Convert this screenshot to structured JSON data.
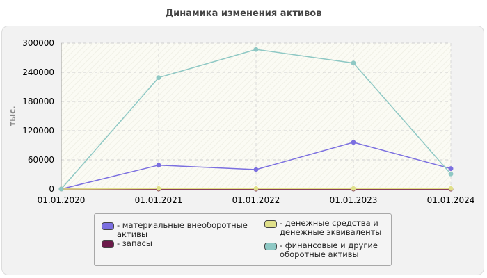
{
  "chart_data": {
    "type": "line",
    "title": "Динамика изменения активов",
    "ylabel": "тыс.",
    "xlabel": "",
    "categories": [
      "01.01.2020",
      "01.01.2021",
      "01.01.2022",
      "01.01.2023",
      "01.01.2024"
    ],
    "y_ticks": [
      "0",
      "60000",
      "120000",
      "180000",
      "240000",
      "300000"
    ],
    "ylim": [
      0,
      300000
    ],
    "grid": true,
    "legend_position": "bottom",
    "series": [
      {
        "name": "- материальные внеоборотные активы",
        "color": "#7b6fe0",
        "values": [
          0,
          49000,
          40000,
          96000,
          42000
        ]
      },
      {
        "name": "- запасы",
        "color": "#6b1a4a",
        "values": [
          0,
          0,
          0,
          0,
          0
        ]
      },
      {
        "name": "- денежные средства и денежные эквиваленты",
        "color": "#e0e08a",
        "values": [
          0,
          1000,
          1000,
          1000,
          1000
        ]
      },
      {
        "name": "- финансовые и другие оборотные активы",
        "color": "#8ec8c4",
        "values": [
          0,
          229000,
          287000,
          259000,
          31000
        ]
      }
    ],
    "extra_lines": [
      {
        "color": "#e06a2a",
        "values": [
          0,
          0,
          0,
          0,
          0
        ]
      }
    ]
  }
}
